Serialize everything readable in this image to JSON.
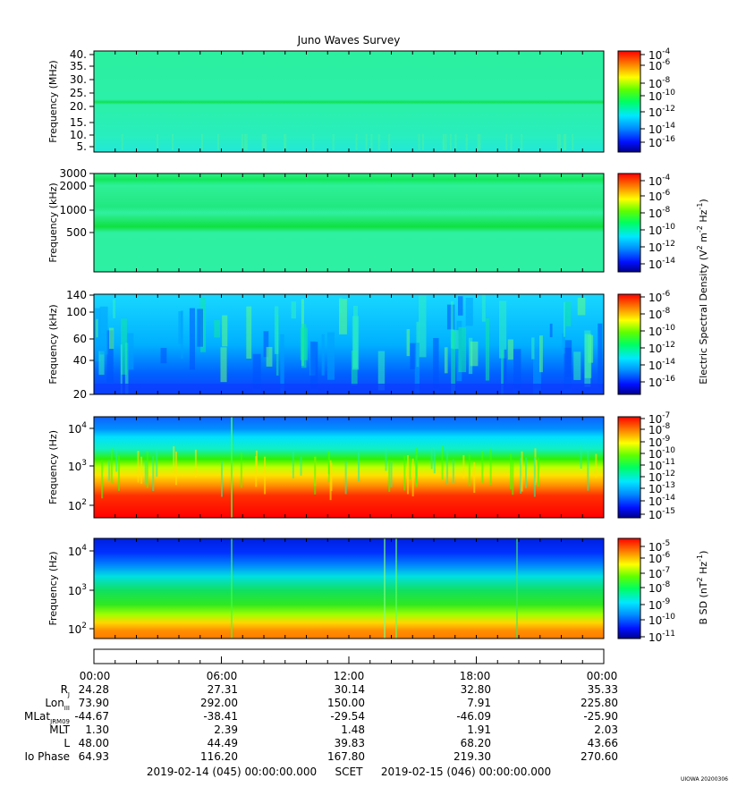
{
  "title": "Juno Waves Survey",
  "chart_data": {
    "type": "heatmap",
    "title": "Juno Waves Survey",
    "panels": [
      {
        "id": "p1",
        "ylabel": "Frequency (MHz)",
        "yscale": "linear",
        "ylim": [
          3.5,
          41
        ],
        "yticks": [
          "5.",
          "10.",
          "15.",
          "20.",
          "25.",
          "30.",
          "35.",
          "40."
        ],
        "color_scale": "log",
        "color_ticks": [
          "-4",
          "-6",
          "-8",
          "-10",
          "-12",
          "-14",
          "-16"
        ],
        "features": "uniform ~1e-12 background with persistent emission band near 21 MHz"
      },
      {
        "id": "p2",
        "ylabel": "Frequency (kHz)",
        "yscale": "log",
        "ylim": [
          150,
          3000
        ],
        "yticks": [
          "3000",
          "2000",
          "1000",
          "500"
        ],
        "color_scale": "log",
        "color_ticks": [
          "-4",
          "-6",
          "-8",
          "-10",
          "-12",
          "-14"
        ],
        "features": "bands near 2000, 1000 and 550 kHz"
      },
      {
        "id": "p3",
        "ylabel": "Frequency (kHz)",
        "yscale": "linear",
        "ylim": [
          20,
          140
        ],
        "yticks": [
          "140",
          "100",
          "60",
          "40",
          "20"
        ],
        "color_scale": "log",
        "color_ticks": [
          "-6",
          "-8",
          "-10",
          "-12",
          "-14",
          "-16"
        ],
        "features": "variable striated emission 20-140 kHz, weaker near 02-04 and 19-20 UT"
      },
      {
        "id": "p4",
        "ylabel": "Frequency (Hz)",
        "yscale": "log",
        "ylim": [
          70,
          20000
        ],
        "yticks": [
          "4",
          "3",
          "2"
        ],
        "color_scale": "log",
        "color_ticks": [
          "-7",
          "-8",
          "-9",
          "-10",
          "-11",
          "-12",
          "-13",
          "-14",
          "-15"
        ],
        "features": "intense <1 kHz emission, falling toward 1e-14 above 5 kHz"
      },
      {
        "id": "p5",
        "ylabel": "Frequency (Hz)",
        "yscale": "log",
        "ylim": [
          50,
          25000
        ],
        "yticks": [
          "4",
          "3",
          "2"
        ],
        "color_scale": "log",
        "color_ticks": [
          "-5",
          "-6",
          "-7",
          "-8",
          "-9",
          "-10",
          "-11"
        ],
        "features": "magnetic spectrum, strongest below 200 Hz"
      }
    ],
    "colorbar_labels": {
      "electric": "Electric Spectral Density (V",
      "magnetic": "B SD (nT",
      "hz": " Hz",
      "close": ")"
    },
    "x": {
      "label": "SCET",
      "ticks": [
        "00:00",
        "06:00",
        "12:00",
        "18:00",
        "00:00"
      ],
      "start": "2019-02-14 (045) 00:00:00.000",
      "end": "2019-02-15 (046) 00:00:00.000"
    },
    "ephemeris": [
      {
        "label": "R",
        "sub": "J",
        "values": [
          "24.28",
          "27.31",
          "30.14",
          "32.80",
          "35.33"
        ]
      },
      {
        "label": "Lon",
        "sub": "III",
        "values": [
          "73.90",
          "292.00",
          "150.00",
          "7.91",
          "225.80"
        ]
      },
      {
        "label": "MLat",
        "sub": "JRM09",
        "values": [
          "-44.67",
          "-38.41",
          "-29.54",
          "-46.09",
          "-25.90"
        ]
      },
      {
        "label": "MLT",
        "sub": "",
        "values": [
          "1.30",
          "2.39",
          "1.48",
          "1.91",
          "2.03"
        ]
      },
      {
        "label": "L",
        "sub": "",
        "values": [
          "48.00",
          "44.49",
          "39.83",
          "68.20",
          "43.66"
        ]
      },
      {
        "label": "Io Phase",
        "sub": "",
        "values": [
          "64.93",
          "116.20",
          "167.80",
          "219.30",
          "270.60"
        ]
      }
    ]
  },
  "footer": {
    "stamp": "UIOWA 20200306"
  }
}
